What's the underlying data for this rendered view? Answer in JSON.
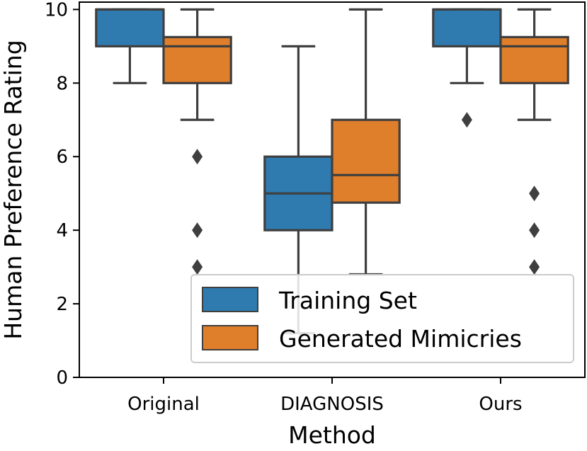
{
  "chart_data": {
    "type": "box",
    "xlabel": "Method",
    "ylabel": "Human Preference Rating",
    "ylim": [
      0,
      10.2
    ],
    "yticks": [
      0,
      2,
      4,
      6,
      8,
      10
    ],
    "categories": [
      "Original",
      "DIAGNOSIS",
      "Ours"
    ],
    "legend_position": "lower-right",
    "series": [
      {
        "name": "Training Set",
        "color": "#2f7bb0",
        "boxes": [
          {
            "whislo": 8,
            "q1": 9,
            "med": 10,
            "q3": 10,
            "whishi": 10,
            "fliers": []
          },
          {
            "whislo": 1.2,
            "q1": 4,
            "med": 5,
            "q3": 6,
            "whishi": 9,
            "fliers": []
          },
          {
            "whislo": 8,
            "q1": 9,
            "med": 10,
            "q3": 10,
            "whishi": 10,
            "fliers": [
              7
            ]
          }
        ]
      },
      {
        "name": "Generated Mimicries",
        "color": "#e07f2b",
        "boxes": [
          {
            "whislo": 7,
            "q1": 8,
            "med": 9,
            "q3": 9.25,
            "whishi": 10,
            "fliers": [
              6,
              4,
              3
            ]
          },
          {
            "whislo": 2.8,
            "q1": 4.75,
            "med": 5.5,
            "q3": 7,
            "whishi": 10,
            "fliers": []
          },
          {
            "whislo": 7,
            "q1": 8,
            "med": 9,
            "q3": 9.25,
            "whishi": 10,
            "fliers": [
              5,
              4,
              3
            ]
          }
        ]
      }
    ]
  }
}
